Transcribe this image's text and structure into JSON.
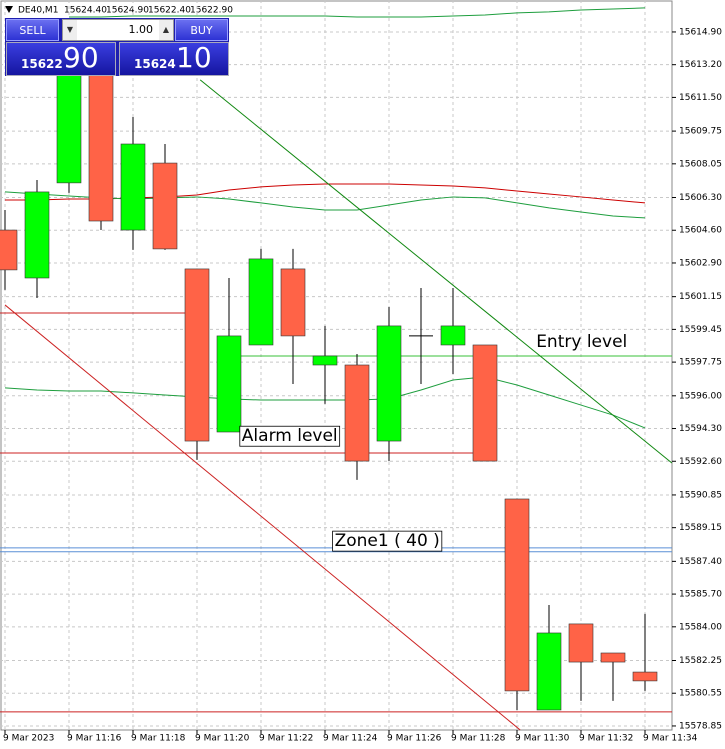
{
  "chart_data": {
    "type": "candlestick",
    "symbol": "DE40,M1",
    "header": [
      "15624.40",
      "15624.90",
      "15622.40",
      "15622.90"
    ],
    "categories": [
      "9 Mar 2023",
      null,
      "9 Mar 11:16",
      null,
      "9 Mar 11:18",
      null,
      "9 Mar 11:20",
      null,
      "9 Mar 11:22",
      null,
      "9 Mar 11:24",
      null,
      "9 Mar 11:26",
      null,
      "9 Mar 11:28",
      null,
      "9 Mar 11:30",
      null,
      "9 Mar 11:32",
      null,
      "9 Mar 11:34"
    ],
    "open": [
      15604.61,
      15602.12,
      15607.06,
      15612.67,
      15604.61,
      15608.09,
      15602.59,
      15594.12,
      15598.64,
      15602.59,
      15597.6,
      15597.6,
      15593.65,
      15599.11,
      15598.64,
      15598.64,
      15590.64,
      15579.68,
      15584.15,
      15582.64,
      15581.65
    ],
    "high": [
      15605.65,
      15607.21,
      15613.19,
      15612.93,
      15610.48,
      15609.08,
      15602.59,
      15602.12,
      15603.63,
      15603.63,
      15599.63,
      15598.17,
      15600.61,
      15601.6,
      15601.6,
      15598.64,
      15590.64,
      15585.13,
      15584.15,
      15582.64,
      15584.67
    ],
    "low": [
      15601.5,
      15601.08,
      15606.54,
      15604.61,
      15603.58,
      15603.58,
      15592.67,
      15594.12,
      15598.64,
      15596.61,
      15595.58,
      15591.63,
      15592.61,
      15596.61,
      15597.13,
      15592.61,
      15579.68,
      15579.68,
      15580.15,
      15580.15,
      15580.67
    ],
    "close": [
      15602.54,
      15606.59,
      15612.67,
      15605.08,
      15609.08,
      15603.63,
      15593.65,
      15599.11,
      15603.11,
      15599.11,
      15598.07,
      15592.61,
      15599.63,
      15599.11,
      15599.63,
      15592.61,
      15580.67,
      15583.68,
      15582.17,
      15582.17,
      15581.19
    ],
    "up_color": "#00ff00",
    "down_color": "#ff6347",
    "doji_color": "#000000",
    "overlays": [
      {
        "color": "#cc0000",
        "values": [
          15606.17,
          15606.17,
          15606.22,
          15606.22,
          15606.28,
          15606.33,
          15606.43,
          15606.69,
          15606.85,
          15606.95,
          15607.0,
          15607.0,
          15607.0,
          15606.95,
          15606.9,
          15606.8,
          15606.64,
          15606.48,
          15606.33,
          15606.17,
          15606.02
        ]
      },
      {
        "color": "#1e9e3e",
        "values": [
          15606.59,
          15606.48,
          15606.38,
          15606.28,
          15606.22,
          15606.28,
          15606.33,
          15606.22,
          15606.02,
          15605.81,
          15605.65,
          15605.65,
          15605.91,
          15606.17,
          15606.33,
          15606.28,
          15606.02,
          15605.76,
          15605.55,
          15605.34,
          15605.24
        ]
      },
      {
        "color": "#1e9e3e",
        "values": [
          15596.41,
          15596.3,
          15596.25,
          15596.25,
          15596.15,
          15596.04,
          15595.94,
          15595.84,
          15595.78,
          15595.78,
          15595.78,
          15595.78,
          15595.84,
          15596.3,
          15596.82,
          15596.98,
          15596.56,
          15596.04,
          15595.52,
          15595.0,
          15594.33
        ]
      },
      {
        "color": "#1e9e3e",
        "values": [
          null,
          null,
          15615.68,
          15615.68,
          15615.73,
          15615.73,
          15615.73,
          15615.73,
          15615.73,
          15615.73,
          15615.73,
          15615.68,
          15615.68,
          15615.68,
          15615.73,
          15615.78,
          15615.89,
          15615.94,
          15616.04,
          15616.09,
          15616.15
        ]
      }
    ],
    "trendlines": [
      {
        "color": "#118811",
        "x": [
          6.1,
          20.84
        ],
        "y": [
          15612.41,
          15592.51
        ]
      },
      {
        "color": "#cc2222",
        "x": [
          0,
          16.1
        ],
        "y": [
          15600.72,
          15578.64
        ]
      }
    ],
    "hlines": [
      {
        "color": "#cc2222",
        "value": 15600.3,
        "x": [
          -0.16,
          5.9
        ]
      },
      {
        "color": "#cc2222",
        "value": 15593.03,
        "x": [
          -0.16,
          15.3
        ]
      },
      {
        "color": "#cc2222",
        "value": 15579.58,
        "x": [
          -0.16,
          20.9
        ]
      },
      {
        "color": "#3ac03a",
        "value": 15598.07,
        "x": [
          7.0,
          20.9
        ]
      },
      {
        "color": "#5a8fd6",
        "value": 15588.1,
        "x": [
          -0.16,
          20.9
        ]
      },
      {
        "color": "#5a8fd6",
        "value": 15587.9,
        "x": [
          -0.16,
          20.9
        ]
      }
    ],
    "annotations": [
      {
        "text": "Entry level",
        "color": "#2a8ad8",
        "x": 16.6,
        "y": 15598.8,
        "boxed": false
      },
      {
        "text": "Alarm level",
        "color": "#dd0000",
        "x": 7.4,
        "y": 15593.9,
        "boxed": true
      },
      {
        "text": "Zone1 ( 40 )",
        "color": "#2a8ad8",
        "x": 10.3,
        "y": 15588.45,
        "boxed": true
      }
    ],
    "ylim": [
      15578.64,
      15616.56
    ],
    "yticks": [
      {
        "value": 15614.9,
        "label": "15614.90"
      },
      {
        "value": 15613.2,
        "label": "15613.20"
      },
      {
        "value": 15611.5,
        "label": "15611.50"
      },
      {
        "value": 15609.75,
        "label": "15609.75"
      },
      {
        "value": 15608.05,
        "label": "15608.05"
      },
      {
        "value": 15606.3,
        "label": "15606.30"
      },
      {
        "value": 15604.6,
        "label": "15604.60"
      },
      {
        "value": 15602.9,
        "label": "15602.90"
      },
      {
        "value": 15601.15,
        "label": "15601.15"
      },
      {
        "value": 15599.45,
        "label": "15599.45"
      },
      {
        "value": 15597.75,
        "label": "15597.75"
      },
      {
        "value": 15596.0,
        "label": "15596.00"
      },
      {
        "value": 15594.3,
        "label": "15594.30"
      },
      {
        "value": 15592.6,
        "label": "15592.60"
      },
      {
        "value": 15590.85,
        "label": "15590.85"
      },
      {
        "value": 15589.15,
        "label": "15589.15"
      },
      {
        "value": 15587.4,
        "label": "15587.40"
      },
      {
        "value": 15585.7,
        "label": "15585.70"
      },
      {
        "value": 15584.0,
        "label": "15584.00"
      },
      {
        "value": 15582.25,
        "label": "15582.25"
      },
      {
        "value": 15580.55,
        "label": "15580.55"
      },
      {
        "value": 15578.85,
        "label": "15578.85"
      }
    ],
    "grid": true
  },
  "trade_panel": {
    "sell": "SELL",
    "buy": "BUY",
    "volume": "1.00",
    "bid_main": "15622",
    "bid_big": "90",
    "ask_main": "15624",
    "ask_big": "10"
  }
}
